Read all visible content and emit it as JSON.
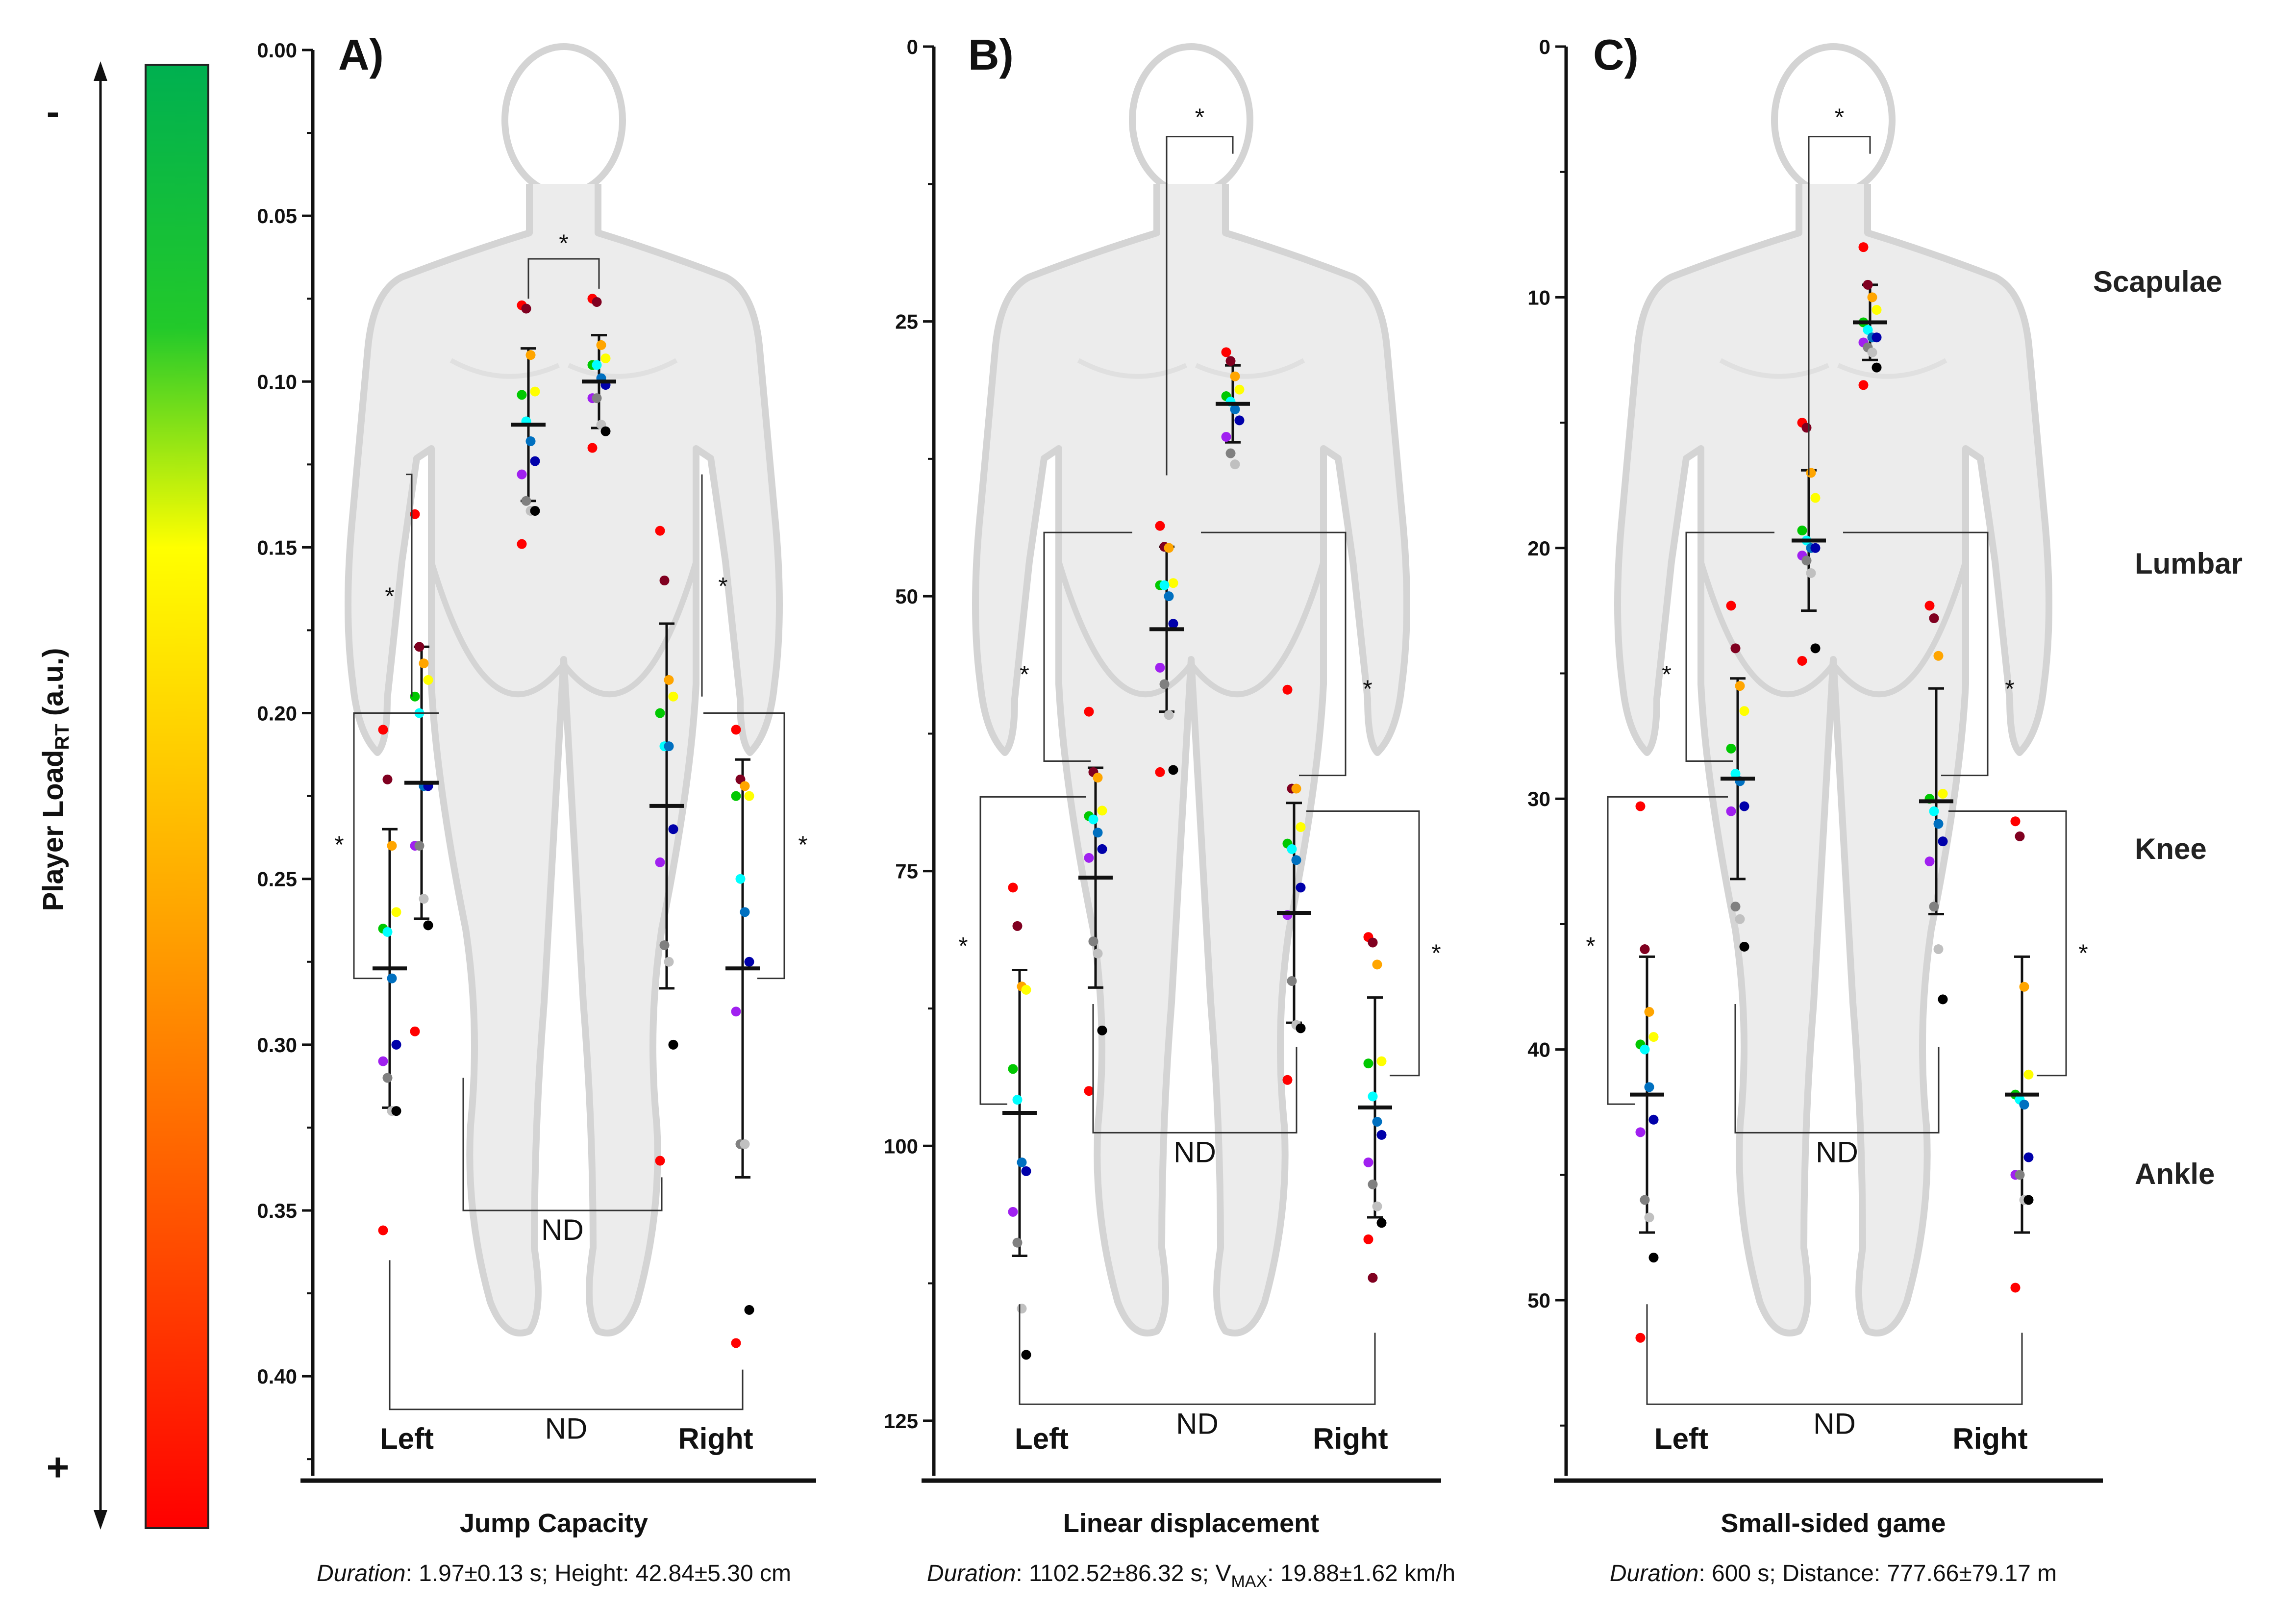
{
  "y_axis_label": "Player Load",
  "y_axis_label_sub": "RT",
  "y_axis_label_unit": " (a.u.)",
  "scale_top_sign": "-",
  "scale_bottom_sign": "+",
  "scale_colors": [
    "#00b050",
    "#22c92a",
    "#ffff00",
    "#ffa500",
    "#ff0000"
  ],
  "dot_colors": [
    "#ff0000",
    "#800020",
    "#ffa500",
    "#ffff00",
    "#00c800",
    "#00ffff",
    "#0070c0",
    "#0000aa",
    "#a020f0",
    "#808080",
    "#c0c0c0",
    "#000000"
  ],
  "regions": [
    "Scapulae",
    "Lumbar",
    "Knee",
    "Ankle"
  ],
  "chart_data": [
    {
      "panel": "A)",
      "type": "scatter",
      "xlabel": "Jump Capacity",
      "caption_italic": "Duration",
      "caption_rest": ": 1.97±0.13 s; Height: 42.84±5.30 cm",
      "left_label": "Left",
      "right_label": "Right",
      "yticks": [
        "0.00",
        "0.05",
        "0.10",
        "0.15",
        "0.20",
        "0.25",
        "0.30",
        "0.35",
        "0.40"
      ],
      "ylim": [
        0,
        0.43
      ],
      "ytick_values": [
        0,
        0.05,
        0.1,
        0.15,
        0.2,
        0.25,
        0.3,
        0.35,
        0.4
      ],
      "inverted": true,
      "series": [
        {
          "name": "Scapulae Left",
          "mean": 0.113,
          "sd": 0.023,
          "values": [
            0.077,
            0.078,
            0.092,
            0.103,
            0.104,
            0.112,
            0.118,
            0.124,
            0.128,
            0.136,
            0.139,
            0.139,
            0.149
          ]
        },
        {
          "name": "Scapulae Right",
          "mean": 0.1,
          "sd": 0.014,
          "values": [
            0.075,
            0.076,
            0.089,
            0.093,
            0.095,
            0.095,
            0.099,
            0.101,
            0.105,
            0.105,
            0.113,
            0.115,
            0.12
          ]
        },
        {
          "name": "Lumbar Left",
          "mean": 0.221,
          "sd": 0.041,
          "values": [
            0.14,
            0.18,
            0.185,
            0.19,
            0.195,
            0.2,
            0.222,
            0.222,
            0.24,
            0.24,
            0.256,
            0.264,
            0.296
          ]
        },
        {
          "name": "Lumbar Right",
          "mean": 0.228,
          "sd": 0.055,
          "values": [
            0.145,
            0.16,
            0.19,
            0.195,
            0.2,
            0.21,
            0.21,
            0.235,
            0.245,
            0.27,
            0.275,
            0.3,
            0.335
          ]
        },
        {
          "name": "Ankle Left",
          "mean": 0.277,
          "sd": 0.042,
          "values": [
            0.205,
            0.22,
            0.24,
            0.26,
            0.265,
            0.266,
            0.28,
            0.3,
            0.305,
            0.31,
            0.32,
            0.32,
            0.356
          ]
        },
        {
          "name": "Ankle Right",
          "mean": 0.277,
          "sd": 0.063,
          "values": [
            0.205,
            0.22,
            0.222,
            0.225,
            0.225,
            0.25,
            0.26,
            0.275,
            0.29,
            0.33,
            0.33,
            0.38,
            0.39
          ]
        }
      ],
      "annotations": [
        "*",
        "*",
        "*",
        "*",
        "*",
        "ND",
        "ND"
      ]
    },
    {
      "panel": "B)",
      "type": "scatter",
      "xlabel": "Linear displacement",
      "caption_italic": "Duration",
      "caption_rest": ": 1102.52±86.32 s; V",
      "caption_sub": "MAX",
      "caption_end": ": 19.88±1.62 km/h",
      "left_label": "Left",
      "right_label": "Right",
      "yticks": [
        "0",
        "25",
        "50",
        "75",
        "100",
        "125"
      ],
      "ylim": [
        0,
        130
      ],
      "ytick_values": [
        0,
        25,
        50,
        75,
        100,
        125
      ],
      "inverted": true,
      "series": [
        {
          "name": "Scapulae",
          "mean": 32.5,
          "sd": 3.5,
          "values": [
            27.8,
            28.6,
            30.0,
            31.2,
            31.8,
            32.3,
            33.0,
            34.0,
            35.5,
            37.0,
            38.0
          ]
        },
        {
          "name": "Lumbar",
          "mean": 53.0,
          "sd": 7.5,
          "values": [
            43.6,
            45.5,
            45.6,
            48.8,
            49.0,
            49.0,
            50.0,
            52.5,
            56.5,
            58.0,
            60.8,
            65.8,
            66.0
          ]
        },
        {
          "name": "Knee Left",
          "mean": 75.6,
          "sd": 10.0,
          "values": [
            60.5,
            66.0,
            66.5,
            69.5,
            70.0,
            70.3,
            71.5,
            73.0,
            73.8,
            81.4,
            82.5,
            89.5,
            95.0
          ]
        },
        {
          "name": "Knee Right",
          "mean": 78.8,
          "sd": 10.0,
          "values": [
            58.5,
            67.5,
            67.5,
            71.0,
            72.5,
            73.0,
            74.0,
            76.5,
            79.0,
            85.0,
            89.0,
            89.3,
            94.0
          ]
        },
        {
          "name": "Ankle Left",
          "mean": 97.0,
          "sd": 13.0,
          "values": [
            76.5,
            80.0,
            85.5,
            85.8,
            93.0,
            95.8,
            101.5,
            102.3,
            106.0,
            108.8,
            114.8,
            119.0
          ]
        },
        {
          "name": "Ankle Right",
          "mean": 96.5,
          "sd": 10.0,
          "values": [
            81.0,
            81.5,
            83.5,
            92.3,
            92.5,
            95.5,
            97.8,
            99.0,
            101.5,
            103.5,
            105.5,
            107.0,
            108.5,
            112.0
          ]
        }
      ],
      "annotations": [
        "*",
        "*",
        "*",
        "*",
        "*",
        "ND",
        "ND"
      ]
    },
    {
      "panel": "C)",
      "type": "scatter",
      "xlabel": "Small-sided game",
      "caption_italic": "Duration",
      "caption_rest": ": 600 s; Distance: 777.66±79.17 m",
      "left_label": "Left",
      "right_label": "Right",
      "yticks": [
        "0",
        "10",
        "20",
        "30",
        "40",
        "50"
      ],
      "ylim": [
        0,
        57
      ],
      "ytick_values": [
        0,
        10,
        20,
        30,
        40,
        50
      ],
      "inverted": true,
      "series": [
        {
          "name": "Scapulae",
          "mean": 11.0,
          "sd": 1.5,
          "values": [
            8.0,
            9.5,
            10.0,
            10.5,
            11.0,
            11.3,
            11.6,
            11.6,
            11.8,
            12.0,
            12.2,
            12.8,
            13.5
          ]
        },
        {
          "name": "Lumbar",
          "mean": 19.7,
          "sd": 2.8,
          "values": [
            15.0,
            15.2,
            17.0,
            18.0,
            19.3,
            19.7,
            20.0,
            20.0,
            20.3,
            20.5,
            21.0,
            24.0,
            24.5
          ]
        },
        {
          "name": "Knee Left",
          "mean": 29.2,
          "sd": 4.0,
          "values": [
            22.3,
            24.0,
            25.5,
            26.5,
            28.0,
            29.0,
            29.3,
            30.3,
            30.5,
            34.3,
            34.8,
            35.9
          ]
        },
        {
          "name": "Knee Right",
          "mean": 30.1,
          "sd": 4.5,
          "values": [
            22.3,
            22.8,
            24.3,
            29.8,
            30.0,
            30.5,
            31.0,
            31.7,
            32.5,
            34.3,
            36.0,
            38.0
          ]
        },
        {
          "name": "Ankle Left",
          "mean": 41.8,
          "sd": 5.5,
          "values": [
            30.3,
            36.0,
            38.5,
            39.5,
            39.8,
            40.0,
            41.5,
            42.8,
            43.3,
            46.0,
            46.7,
            48.3,
            51.5
          ]
        },
        {
          "name": "Ankle Right",
          "mean": 41.8,
          "sd": 5.5,
          "values": [
            30.9,
            31.5,
            37.5,
            41.0,
            41.8,
            42.0,
            42.2,
            44.3,
            45.0,
            45.0,
            46.0,
            46.0,
            49.5
          ]
        }
      ],
      "annotations": [
        "*",
        "*",
        "*",
        "*",
        "*",
        "ND",
        "ND"
      ]
    }
  ]
}
